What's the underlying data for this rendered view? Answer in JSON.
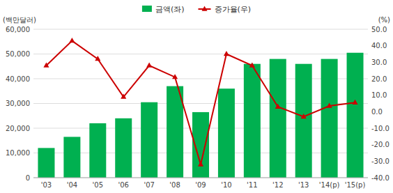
{
  "chart_data": {
    "type": "bar",
    "categories": [
      "'03",
      "'04",
      "'05",
      "'06",
      "'07",
      "'08",
      "'09",
      "'10",
      "'11",
      "'12",
      "'13",
      "'14(p)",
      "'15(p)"
    ],
    "series": [
      {
        "name": "금액(좌)",
        "type": "bar",
        "color": "#00b050",
        "values": [
          12000,
          16500,
          22000,
          24000,
          30500,
          37000,
          26500,
          36000,
          46000,
          48000,
          46000,
          48000,
          50500
        ]
      },
      {
        "name": "증가율(우)",
        "type": "line",
        "axis": "y2",
        "color": "#cc0000",
        "marker": "triangle",
        "values": [
          28.0,
          43.0,
          32.0,
          9.0,
          28.0,
          21.0,
          -32.0,
          35.0,
          28.0,
          3.0,
          -3.0,
          3.5,
          5.5
        ]
      }
    ],
    "ylabel": "(백만달러)",
    "y2label": "(%)",
    "ylim": [
      0,
      60000
    ],
    "yticks": [
      0,
      {
        "value": 10000,
        "label": "10,000"
      },
      {
        "value": 20000,
        "label": "20,000"
      },
      {
        "value": 30000,
        "label": "30,000"
      },
      {
        "value": 40000,
        "label": "40,000"
      },
      {
        "value": 50000,
        "label": "50,000"
      },
      {
        "value": 60000,
        "label": "60,000"
      }
    ],
    "y2lim": [
      -40.0,
      50.0
    ],
    "y2ticks": [
      {
        "value": -40.0,
        "label": "-40.0"
      },
      {
        "value": -30.0,
        "label": "-30.0"
      },
      {
        "value": -20.0,
        "label": "-20.0"
      },
      {
        "value": -10.0,
        "label": "-10.0"
      },
      {
        "value": 0.0,
        "label": "0.0"
      },
      {
        "value": 10.0,
        "label": "10.0"
      },
      {
        "value": 20.0,
        "label": "20.0"
      },
      {
        "value": 30.0,
        "label": "30.0"
      },
      {
        "value": 40.0,
        "label": "40.0"
      },
      {
        "value": 50.0,
        "label": "50.0"
      }
    ],
    "grid": true,
    "legend": "top"
  }
}
